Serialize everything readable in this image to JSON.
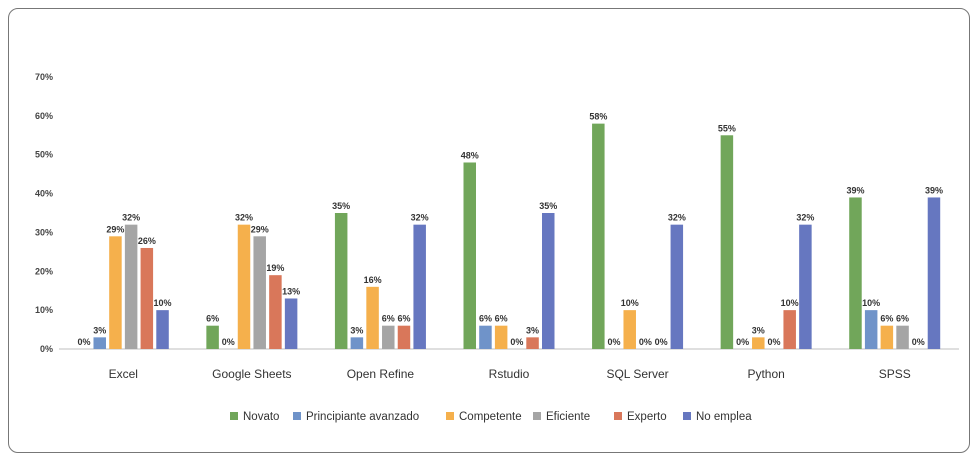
{
  "chart_data": {
    "type": "bar",
    "categories": [
      "Excel",
      "Google Sheets",
      "Open Refine",
      "Rstudio",
      "SQL Server",
      "Python",
      "SPSS"
    ],
    "series": [
      {
        "name": "Novato",
        "color": "#71a65a",
        "values": [
          0,
          6,
          35,
          48,
          58,
          55,
          39
        ],
        "labels": [
          "0%",
          "6%",
          "35%",
          "48%",
          "58%",
          "55%",
          "39%"
        ]
      },
      {
        "name": "Principiante avanzado",
        "color": "#6f93c9",
        "values": [
          3,
          0,
          3,
          6,
          0,
          0,
          10
        ],
        "labels": [
          "3%",
          "0%",
          "3%",
          "6%",
          "0%",
          "0%",
          "10%"
        ]
      },
      {
        "name": "Competente",
        "color": "#f5b04c",
        "values": [
          29,
          32,
          16,
          6,
          10,
          3,
          6
        ],
        "labels": [
          "29%",
          "32%",
          "16%",
          "6%",
          "10%",
          "3%",
          "6%"
        ]
      },
      {
        "name": "Eficiente",
        "color": "#a5a5a5",
        "values": [
          32,
          29,
          6,
          0,
          0,
          0,
          6
        ],
        "labels": [
          "32%",
          "29%",
          "6%",
          "0%",
          "0%",
          "0%",
          "6%"
        ]
      },
      {
        "name": "Experto",
        "color": "#d9775a",
        "values": [
          26,
          19,
          6,
          3,
          0,
          10,
          0
        ],
        "labels": [
          "26%",
          "19%",
          "6%",
          "3%",
          "0%",
          "10%",
          "0%"
        ]
      },
      {
        "name": "No emplea",
        "color": "#6677c0",
        "values": [
          10,
          13,
          32,
          35,
          32,
          32,
          39
        ],
        "labels": [
          "10%",
          "13%",
          "32%",
          "35%",
          "32%",
          "32%",
          "39%"
        ]
      }
    ],
    "yticks": [
      "0%",
      "10%",
      "20%",
      "30%",
      "40%",
      "50%",
      "60%",
      "70%"
    ],
    "ylim": [
      0,
      70
    ],
    "title": "",
    "xlabel": "",
    "ylabel": "",
    "grid": false,
    "legend": "bottom"
  }
}
